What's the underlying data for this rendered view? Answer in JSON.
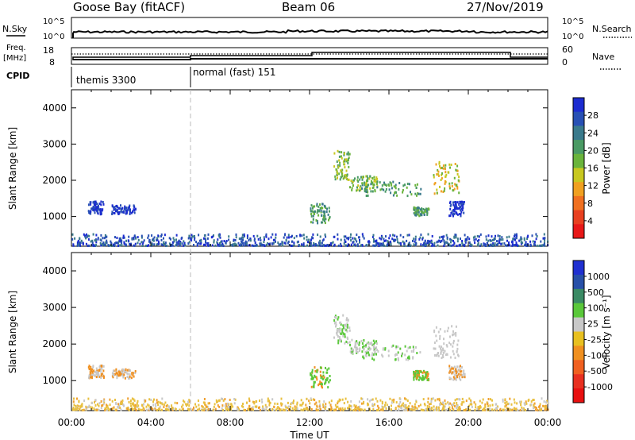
{
  "header": {
    "station": "Goose Bay (fitACF)",
    "beam": "Beam 06",
    "date": "27/Nov/2019"
  },
  "nsky_panel": {
    "left_label": "N.Sky",
    "right_label": "N.Search",
    "left_ticks": [
      "10^5",
      "10^0"
    ],
    "right_ticks": [
      "10^5",
      "10^0"
    ]
  },
  "freq_panel": {
    "left_label_1": "Freq.",
    "left_label_2": "[MHz]",
    "right_label": "Nave",
    "left_ticks": [
      "18",
      "8"
    ],
    "right_ticks": [
      "60",
      "0"
    ]
  },
  "cpid_panel": {
    "label": "CPID",
    "segments": [
      {
        "start_hour": 0,
        "text": "themis 3300"
      },
      {
        "start_hour": 6,
        "text": "normal (fast) 151"
      }
    ]
  },
  "x_axis": {
    "label": "Time UT",
    "ticks": [
      "00:00",
      "04:00",
      "08:00",
      "12:00",
      "16:00",
      "20:00",
      "00:00"
    ]
  },
  "chart_data": [
    {
      "type": "heatmap",
      "title": "Power",
      "xlabel": "Time UT",
      "ylabel": "Slant Range [km]",
      "xlim": [
        0,
        24
      ],
      "ylim": [
        180,
        4500
      ],
      "yticks": [
        "4000",
        "3000",
        "2000",
        "1000"
      ],
      "colorbar": {
        "label": "Power [dB]",
        "ticks": [
          "28",
          "24",
          "20",
          "16",
          "12",
          "8",
          "4"
        ],
        "colors": [
          "#1c2cd0",
          "#2850b4",
          "#3a7a8c",
          "#4a9a64",
          "#6ab43c",
          "#c8c820",
          "#f0a020",
          "#f07020",
          "#e84020",
          "#e81818"
        ]
      },
      "blobs": [
        {
          "t0": 0.0,
          "t1": 24.0,
          "r0": 180,
          "r1": 500,
          "level": "mixed-low"
        },
        {
          "t0": 0.8,
          "t1": 1.6,
          "r0": 1050,
          "r1": 1400,
          "level": "low"
        },
        {
          "t0": 2.0,
          "t1": 3.2,
          "r0": 1050,
          "r1": 1300,
          "level": "low"
        },
        {
          "t0": 12.0,
          "t1": 13.0,
          "r0": 800,
          "r1": 1350,
          "level": "mid"
        },
        {
          "t0": 13.2,
          "t1": 14.0,
          "r0": 2000,
          "r1": 2800,
          "level": "mid-high"
        },
        {
          "t0": 14.0,
          "t1": 15.4,
          "r0": 1700,
          "r1": 2100,
          "level": "mid-high"
        },
        {
          "t0": 14.6,
          "t1": 17.6,
          "r0": 1550,
          "r1": 1950,
          "level": "mid"
        },
        {
          "t0": 17.2,
          "t1": 18.0,
          "r0": 1000,
          "r1": 1250,
          "level": "mid"
        },
        {
          "t0": 18.2,
          "t1": 19.5,
          "r0": 1600,
          "r1": 2500,
          "level": "high"
        },
        {
          "t0": 19.0,
          "t1": 19.8,
          "r0": 1000,
          "r1": 1400,
          "level": "low"
        }
      ]
    },
    {
      "type": "heatmap",
      "title": "Velocity",
      "xlabel": "Time UT",
      "ylabel": "Slant Range [km]",
      "xlim": [
        0,
        24
      ],
      "ylim": [
        180,
        4500
      ],
      "yticks": [
        "4000",
        "3000",
        "2000",
        "1000"
      ],
      "colorbar": {
        "label": "Velocity [m s⁻¹]",
        "ticks": [
          "1000",
          "500",
          "100",
          "25",
          "-25",
          "-100",
          "-500",
          "-1000"
        ],
        "colors": [
          "#2030d0",
          "#2850a8",
          "#3a8a64",
          "#5ac83a",
          "#c8c8c8",
          "#e8c020",
          "#f09020",
          "#f06020",
          "#e83020",
          "#e81010"
        ]
      }
    }
  ]
}
